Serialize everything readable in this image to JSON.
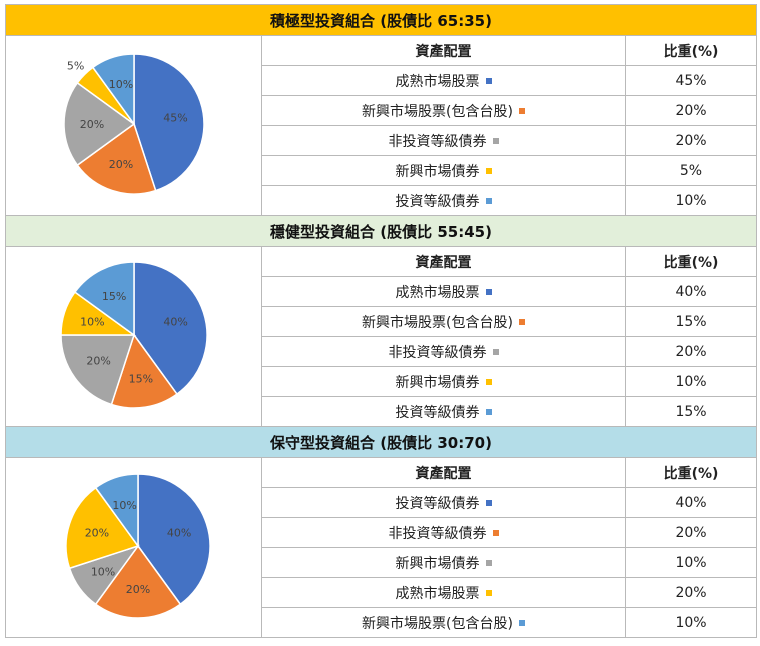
{
  "header_labels": {
    "allocation": "資產配置",
    "weight": "比重(%)"
  },
  "portfolios": [
    {
      "title": "積極型投資組合 (股債比 65:35)",
      "banner_color": "#ffc000",
      "rows": [
        {
          "label": "成熟市場股票",
          "value": "45%",
          "color": "#4472c4"
        },
        {
          "label": "新興市場股票(包含台股)",
          "value": "20%",
          "color": "#ed7d31"
        },
        {
          "label": "非投資等級債券",
          "value": "20%",
          "color": "#a5a5a5"
        },
        {
          "label": "新興市場債券",
          "value": "5%",
          "color": "#ffc000"
        },
        {
          "label": "投資等級債券",
          "value": "10%",
          "color": "#5b9bd5"
        }
      ]
    },
    {
      "title": "穩健型投資組合 (股債比 55:45)",
      "banner_color": "#e2efda",
      "rows": [
        {
          "label": "成熟市場股票",
          "value": "40%",
          "color": "#4472c4"
        },
        {
          "label": "新興市場股票(包含台股)",
          "value": "15%",
          "color": "#ed7d31"
        },
        {
          "label": "非投資等級債券",
          "value": "20%",
          "color": "#a5a5a5"
        },
        {
          "label": "新興市場債券",
          "value": "10%",
          "color": "#ffc000"
        },
        {
          "label": "投資等級債券",
          "value": "15%",
          "color": "#5b9bd5"
        }
      ]
    },
    {
      "title": "保守型投資組合 (股債比 30:70)",
      "banner_color": "#b4dde8",
      "rows": [
        {
          "label": "投資等級債券",
          "value": "40%",
          "color": "#4472c4"
        },
        {
          "label": "非投資等級債券",
          "value": "20%",
          "color": "#ed7d31"
        },
        {
          "label": "新興市場債券",
          "value": "10%",
          "color": "#a5a5a5"
        },
        {
          "label": "成熟市場股票",
          "value": "20%",
          "color": "#ffc000"
        },
        {
          "label": "新興市場股票(包含台股)",
          "value": "10%",
          "color": "#5b9bd5"
        }
      ]
    }
  ],
  "chart_data": [
    {
      "type": "pie",
      "categories": [
        "成熟市場股票",
        "新興市場股票(包含台股)",
        "非投資等級債券",
        "新興市場債券",
        "投資等級債券"
      ],
      "values": [
        45,
        20,
        20,
        5,
        10
      ],
      "labels": [
        "45%",
        "20%",
        "20%",
        "5%",
        "10%"
      ],
      "colors": [
        "#4472c4",
        "#ed7d31",
        "#a5a5a5",
        "#ffc000",
        "#5b9bd5"
      ]
    },
    {
      "type": "pie",
      "categories": [
        "成熟市場股票",
        "新興市場股票(包含台股)",
        "非投資等級債券",
        "新興市場債券",
        "投資等級債券"
      ],
      "values": [
        40,
        15,
        20,
        10,
        15
      ],
      "labels": [
        "40%",
        "15%",
        "20%",
        "10%",
        "15%"
      ],
      "colors": [
        "#4472c4",
        "#ed7d31",
        "#a5a5a5",
        "#ffc000",
        "#5b9bd5"
      ]
    },
    {
      "type": "pie",
      "categories": [
        "投資等級債券",
        "非投資等級債券",
        "新興市場債券",
        "成熟市場股票",
        "新興市場股票(包含台股)"
      ],
      "values": [
        40,
        20,
        10,
        20,
        10
      ],
      "labels": [
        "40%",
        "20%",
        "10%",
        "20%",
        "10%"
      ],
      "colors": [
        "#4472c4",
        "#ed7d31",
        "#a5a5a5",
        "#ffc000",
        "#5b9bd5"
      ]
    }
  ]
}
